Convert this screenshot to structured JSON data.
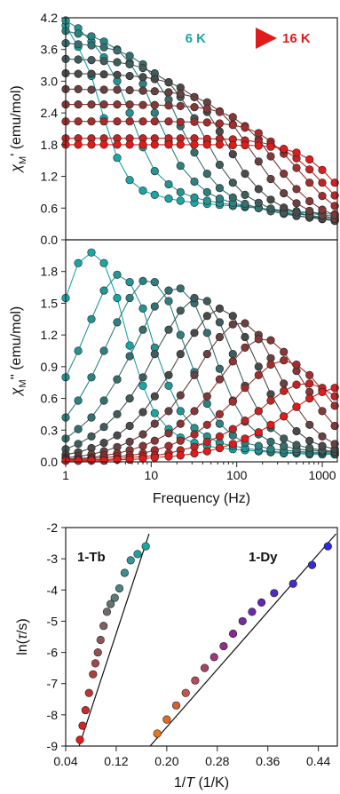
{
  "chart_data": [
    {
      "type": "line",
      "ylabel_symbol": "χ",
      "ylabel_sub": "M",
      "ylabel_rest": "' (emu/mol)",
      "xscale": "log",
      "xlim": [
        1,
        1500
      ],
      "ylim": [
        0.0,
        4.2
      ],
      "yticks": [
        "0.0",
        "0.6",
        "1.2",
        "1.8",
        "2.4",
        "3.0",
        "3.6",
        "4.2"
      ],
      "legend": {
        "start": "6 K",
        "end": "16 K",
        "start_color": "#1aa6a6",
        "end_color": "#e01b1b"
      },
      "x": [
        1,
        1.4,
        2,
        2.8,
        4,
        5.6,
        8,
        11,
        16,
        22,
        32,
        45,
        63,
        90,
        125,
        180,
        250,
        355,
        500,
        710,
        1000,
        1400
      ],
      "series": [
        {
          "T": 6,
          "values": [
            4.05,
            3.65,
            3.1,
            2.3,
            1.55,
            1.13,
            0.93,
            0.85,
            0.78,
            0.74,
            0.7,
            0.68,
            0.66,
            0.64,
            0.62,
            0.6,
            0.58,
            0.56,
            0.54,
            0.52,
            0.5,
            0.48
          ]
        },
        {
          "T": 7,
          "values": [
            4.15,
            4.0,
            3.75,
            3.45,
            3.0,
            2.4,
            1.75,
            1.3,
            1.05,
            0.9,
            0.8,
            0.74,
            0.7,
            0.66,
            0.63,
            0.6,
            0.57,
            0.55,
            0.52,
            0.5,
            0.47,
            0.45
          ]
        },
        {
          "T": 8,
          "values": [
            3.95,
            3.9,
            3.85,
            3.75,
            3.6,
            3.35,
            2.95,
            2.4,
            1.85,
            1.4,
            1.1,
            0.9,
            0.78,
            0.7,
            0.64,
            0.6,
            0.56,
            0.52,
            0.49,
            0.46,
            0.43,
            0.41
          ]
        },
        {
          "T": 9,
          "values": [
            3.72,
            3.7,
            3.68,
            3.64,
            3.58,
            3.48,
            3.32,
            3.05,
            2.65,
            2.15,
            1.65,
            1.25,
            0.98,
            0.8,
            0.68,
            0.6,
            0.54,
            0.49,
            0.45,
            0.42,
            0.4,
            0.38
          ]
        },
        {
          "T": 10,
          "values": [
            3.42,
            3.41,
            3.4,
            3.38,
            3.36,
            3.32,
            3.25,
            3.15,
            2.98,
            2.7,
            2.3,
            1.85,
            1.42,
            1.08,
            0.85,
            0.7,
            0.59,
            0.51,
            0.46,
            0.42,
            0.39,
            0.36
          ]
        },
        {
          "T": 11,
          "values": [
            3.15,
            3.14,
            3.14,
            3.13,
            3.12,
            3.1,
            3.08,
            3.04,
            2.98,
            2.88,
            2.7,
            2.42,
            2.05,
            1.62,
            1.25,
            0.96,
            0.76,
            0.61,
            0.52,
            0.45,
            0.4,
            0.36
          ]
        },
        {
          "T": 12,
          "values": [
            2.85,
            2.85,
            2.84,
            2.84,
            2.84,
            2.83,
            2.82,
            2.81,
            2.79,
            2.76,
            2.7,
            2.6,
            2.43,
            2.18,
            1.85,
            1.48,
            1.15,
            0.88,
            0.69,
            0.55,
            0.46,
            0.4
          ]
        },
        {
          "T": 13,
          "values": [
            2.56,
            2.56,
            2.56,
            2.56,
            2.56,
            2.56,
            2.55,
            2.55,
            2.54,
            2.53,
            2.51,
            2.48,
            2.42,
            2.32,
            2.15,
            1.9,
            1.58,
            1.25,
            0.96,
            0.73,
            0.57,
            0.47
          ]
        },
        {
          "T": 14,
          "values": [
            2.24,
            2.24,
            2.24,
            2.24,
            2.24,
            2.24,
            2.24,
            2.24,
            2.24,
            2.23,
            2.23,
            2.22,
            2.2,
            2.17,
            2.12,
            2.02,
            1.86,
            1.63,
            1.36,
            1.08,
            0.83,
            0.64
          ]
        },
        {
          "T": 15,
          "values": [
            1.92,
            1.92,
            1.92,
            1.92,
            1.92,
            1.92,
            1.92,
            1.92,
            1.92,
            1.92,
            1.92,
            1.91,
            1.91,
            1.9,
            1.88,
            1.85,
            1.8,
            1.7,
            1.54,
            1.33,
            1.08,
            0.84
          ]
        },
        {
          "T": 16,
          "values": [
            1.8,
            1.8,
            1.8,
            1.8,
            1.8,
            1.8,
            1.8,
            1.8,
            1.8,
            1.8,
            1.8,
            1.8,
            1.8,
            1.79,
            1.79,
            1.78,
            1.76,
            1.72,
            1.65,
            1.52,
            1.32,
            1.08
          ]
        }
      ]
    },
    {
      "type": "line",
      "xlabel": "Frequency (Hz)",
      "ylabel_symbol": "χ",
      "ylabel_sub": "M",
      "ylabel_rest": "'' (emu/mol)",
      "xscale": "log",
      "xlim": [
        1,
        1500
      ],
      "xticks": [
        "1",
        "10",
        "100",
        "1000"
      ],
      "ylim": [
        0.0,
        2.1
      ],
      "yticks": [
        "0.0",
        "0.3",
        "0.6",
        "0.9",
        "1.2",
        "1.5",
        "1.8"
      ],
      "x": [
        1,
        1.4,
        2,
        2.8,
        4,
        5.6,
        8,
        11,
        16,
        22,
        32,
        45,
        63,
        90,
        125,
        180,
        250,
        355,
        500,
        710,
        1000,
        1400
      ],
      "series": [
        {
          "T": 6,
          "values": [
            1.55,
            1.88,
            1.98,
            1.88,
            1.55,
            1.1,
            0.72,
            0.46,
            0.31,
            0.23,
            0.18,
            0.15,
            0.13,
            0.12,
            0.11,
            0.1,
            0.09,
            0.08,
            0.08,
            0.07,
            0.07,
            0.07
          ]
        },
        {
          "T": 7,
          "values": [
            0.8,
            1.05,
            1.35,
            1.62,
            1.77,
            1.7,
            1.45,
            1.08,
            0.72,
            0.48,
            0.32,
            0.24,
            0.18,
            0.15,
            0.13,
            0.11,
            0.1,
            0.09,
            0.09,
            0.08,
            0.08,
            0.07
          ]
        },
        {
          "T": 8,
          "values": [
            0.42,
            0.58,
            0.8,
            1.05,
            1.32,
            1.55,
            1.71,
            1.7,
            1.52,
            1.2,
            0.85,
            0.55,
            0.36,
            0.25,
            0.18,
            0.15,
            0.12,
            0.11,
            0.1,
            0.09,
            0.09,
            0.08
          ]
        },
        {
          "T": 9,
          "values": [
            0.22,
            0.31,
            0.42,
            0.58,
            0.78,
            1.0,
            1.25,
            1.47,
            1.62,
            1.64,
            1.5,
            1.22,
            0.88,
            0.58,
            0.38,
            0.26,
            0.19,
            0.15,
            0.12,
            0.11,
            0.1,
            0.09
          ]
        },
        {
          "T": 10,
          "values": [
            0.12,
            0.17,
            0.24,
            0.33,
            0.45,
            0.6,
            0.8,
            1.02,
            1.25,
            1.43,
            1.55,
            1.52,
            1.32,
            1.02,
            0.72,
            0.48,
            0.32,
            0.22,
            0.16,
            0.13,
            0.11,
            0.1
          ]
        },
        {
          "T": 11,
          "values": [
            0.07,
            0.09,
            0.13,
            0.18,
            0.25,
            0.34,
            0.47,
            0.62,
            0.82,
            1.02,
            1.22,
            1.38,
            1.45,
            1.38,
            1.18,
            0.9,
            0.64,
            0.43,
            0.29,
            0.2,
            0.15,
            0.12
          ]
        },
        {
          "T": 12,
          "values": [
            0.04,
            0.05,
            0.07,
            0.1,
            0.14,
            0.19,
            0.26,
            0.36,
            0.48,
            0.63,
            0.82,
            1.02,
            1.18,
            1.3,
            1.31,
            1.2,
            0.98,
            0.74,
            0.52,
            0.35,
            0.24,
            0.17
          ]
        },
        {
          "T": 13,
          "values": [
            0.03,
            0.03,
            0.04,
            0.06,
            0.08,
            0.11,
            0.15,
            0.2,
            0.27,
            0.36,
            0.48,
            0.62,
            0.78,
            0.95,
            1.08,
            1.16,
            1.15,
            1.04,
            0.86,
            0.66,
            0.48,
            0.34
          ]
        },
        {
          "T": 14,
          "values": [
            0.02,
            0.02,
            0.03,
            0.04,
            0.05,
            0.06,
            0.08,
            0.11,
            0.15,
            0.2,
            0.26,
            0.35,
            0.45,
            0.57,
            0.7,
            0.82,
            0.92,
            0.96,
            0.92,
            0.82,
            0.68,
            0.53
          ]
        },
        {
          "T": 15,
          "values": [
            0.01,
            0.01,
            0.02,
            0.02,
            0.03,
            0.04,
            0.05,
            0.06,
            0.08,
            0.11,
            0.14,
            0.19,
            0.24,
            0.31,
            0.39,
            0.48,
            0.58,
            0.67,
            0.73,
            0.74,
            0.7,
            0.62
          ]
        },
        {
          "T": 16,
          "values": [
            0.01,
            0.01,
            0.01,
            0.01,
            0.02,
            0.02,
            0.03,
            0.04,
            0.05,
            0.06,
            0.08,
            0.1,
            0.13,
            0.17,
            0.22,
            0.28,
            0.35,
            0.43,
            0.52,
            0.6,
            0.66,
            0.7
          ]
        }
      ]
    },
    {
      "type": "scatter",
      "xlabel_pre": "1/",
      "xlabel_italic": "T",
      "xlabel_post": " (1/K)",
      "ylabel_pre": "ln(",
      "ylabel_italic": "τ",
      "ylabel_post": "/s)",
      "xlim": [
        0.04,
        0.47
      ],
      "ylim": [
        -9,
        -2
      ],
      "xticks": [
        "0.04",
        "0.12",
        "0.20",
        "0.28",
        "0.36",
        "0.44"
      ],
      "yticks": [
        "-2",
        "-3",
        "-4",
        "-5",
        "-6",
        "-7",
        "-8",
        "-9"
      ],
      "annotations": [
        "1-Tb",
        "1-Dy"
      ],
      "series": [
        {
          "name": "1-Tb",
          "x": [
            0.0625,
            0.0667,
            0.0714,
            0.0769,
            0.0833,
            0.087,
            0.0909,
            0.0952,
            0.1,
            0.1053,
            0.1111,
            0.1176,
            0.125,
            0.1333,
            0.1429,
            0.1538,
            0.1667
          ],
          "y": [
            -8.8,
            -8.35,
            -7.85,
            -7.3,
            -6.7,
            -6.35,
            -6.0,
            -5.6,
            -5.15,
            -4.7,
            -4.45,
            -4.25,
            -3.95,
            -3.45,
            -3.05,
            -2.85,
            -2.6
          ],
          "fit": [
            [
              0.058,
              -9.2
            ],
            [
              0.172,
              -2.2
            ]
          ]
        },
        {
          "name": "1-Dy",
          "x": [
            0.185,
            0.2,
            0.215,
            0.23,
            0.245,
            0.26,
            0.275,
            0.29,
            0.305,
            0.32,
            0.335,
            0.35,
            0.37,
            0.4,
            0.43,
            0.455
          ],
          "y": [
            -8.6,
            -8.15,
            -7.7,
            -7.3,
            -6.9,
            -6.5,
            -6.15,
            -5.8,
            -5.4,
            -5.0,
            -4.7,
            -4.4,
            -4.1,
            -3.8,
            -3.2,
            -2.6
          ],
          "fit": [
            [
              0.165,
              -9.2
            ],
            [
              0.468,
              -2.2
            ]
          ]
        }
      ]
    }
  ]
}
